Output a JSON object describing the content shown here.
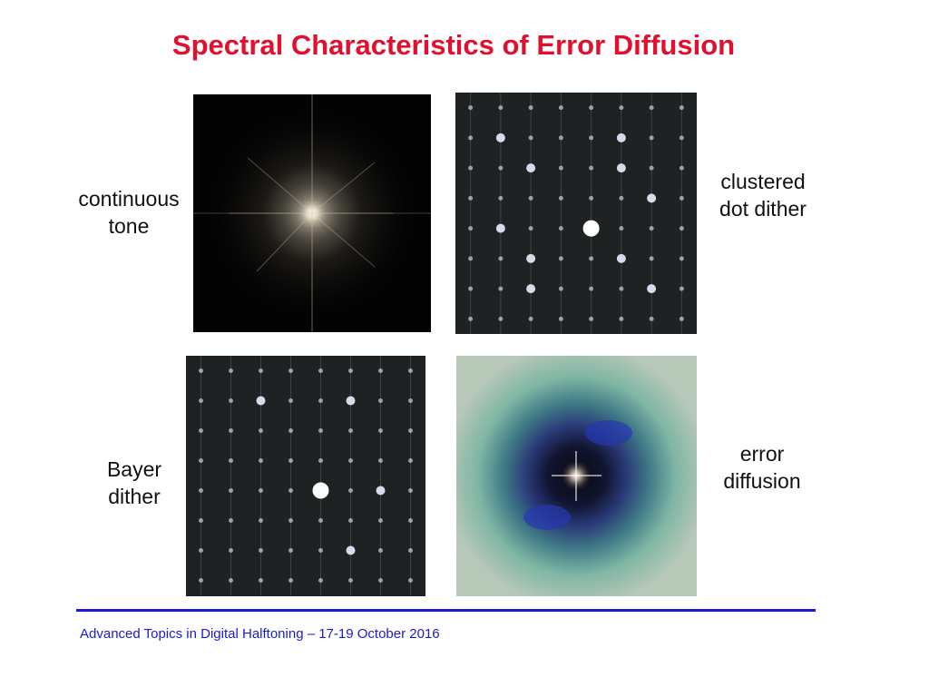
{
  "slide": {
    "title": "Spectral Characteristics of Error Diffusion",
    "footer": "Advanced Topics in Digital Halftoning – 17-19 October 2016",
    "colors": {
      "title": "#e0102e",
      "footer": "#1a1ad0",
      "rule": "#1a1ad0"
    }
  },
  "panels": [
    {
      "label_lines": [
        "continuous",
        "tone"
      ],
      "image": "fourier-spectrum-continuous-tone"
    },
    {
      "label_lines": [
        "clustered",
        "dot dither"
      ],
      "image": "fourier-spectrum-clustered-dot-dither"
    },
    {
      "label_lines": [
        "Bayer",
        "dither"
      ],
      "image": "fourier-spectrum-bayer-dither"
    },
    {
      "label_lines": [
        "error",
        "diffusion"
      ],
      "image": "fourier-spectrum-error-diffusion"
    }
  ]
}
